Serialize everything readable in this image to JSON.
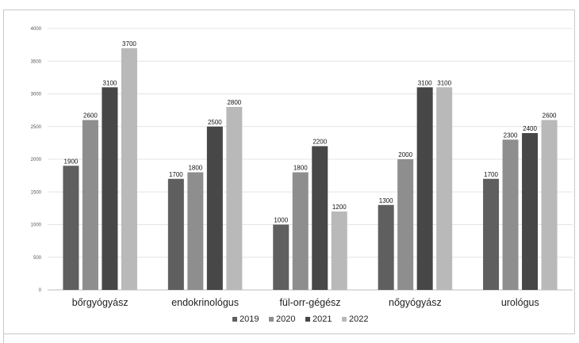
{
  "chart_data": {
    "type": "bar",
    "title": "",
    "xlabel": "",
    "ylabel": "",
    "ylim": [
      0,
      4000
    ],
    "yticks": [
      0,
      500,
      1000,
      1500,
      2000,
      2500,
      3000,
      3500,
      4000
    ],
    "grid": true,
    "legend_position": "bottom",
    "categories": [
      "bőrgyógyász",
      "endokrinológus",
      "fül-orr-gégész",
      "nőgyógyász",
      "urológus"
    ],
    "series": [
      {
        "name": "2019",
        "color": "#5f5f5f",
        "values": [
          1900,
          1700,
          1000,
          1300,
          1700
        ]
      },
      {
        "name": "2020",
        "color": "#8e8e8e",
        "values": [
          2600,
          1800,
          1800,
          2000,
          2300
        ]
      },
      {
        "name": "2021",
        "color": "#474747",
        "values": [
          3100,
          2500,
          2200,
          3100,
          2400
        ]
      },
      {
        "name": "2022",
        "color": "#b9b9b9",
        "values": [
          3700,
          2800,
          1200,
          3100,
          2600
        ]
      }
    ]
  }
}
